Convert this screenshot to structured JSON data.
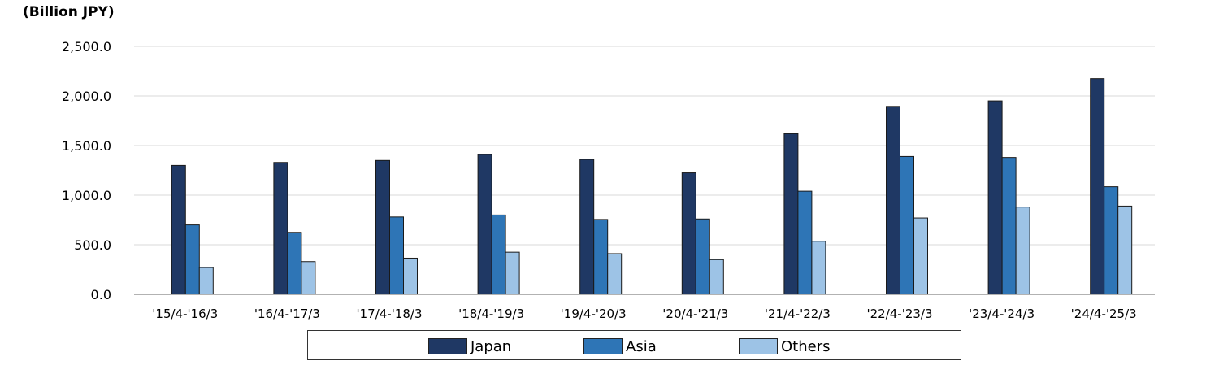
{
  "chart_data": {
    "type": "bar",
    "unit_label": "(Billion JPY)",
    "categories": [
      "'15/4-'16/3",
      "'16/4-'17/3",
      "'17/4-'18/3",
      "'18/4-'19/3",
      "'19/4-'20/3",
      "'20/4-'21/3",
      "'21/4-'22/3",
      "'22/4-'23/3",
      "'23/4-'24/3",
      "'24/4-'25/3"
    ],
    "series": [
      {
        "name": "Japan",
        "color": "#1f3864",
        "values": [
          1300,
          1330,
          1350,
          1410,
          1360,
          1225,
          1620,
          1895,
          1950,
          2175
        ]
      },
      {
        "name": "Asia",
        "color": "#2e75b6",
        "values": [
          700,
          625,
          780,
          800,
          755,
          760,
          1040,
          1390,
          1380,
          1085
        ]
      },
      {
        "name": "Others",
        "color": "#9dc3e6",
        "values": [
          270,
          330,
          365,
          425,
          410,
          350,
          535,
          770,
          880,
          890
        ]
      }
    ],
    "ylim": [
      0,
      2500
    ],
    "yticks": [
      "0.0",
      "500.0",
      "1,000.0",
      "1,500.0",
      "2,000.0",
      "2,500.0"
    ],
    "ytick_values": [
      0,
      500,
      1000,
      1500,
      2000,
      2500
    ],
    "grid": true,
    "legend_position": "bottom"
  }
}
